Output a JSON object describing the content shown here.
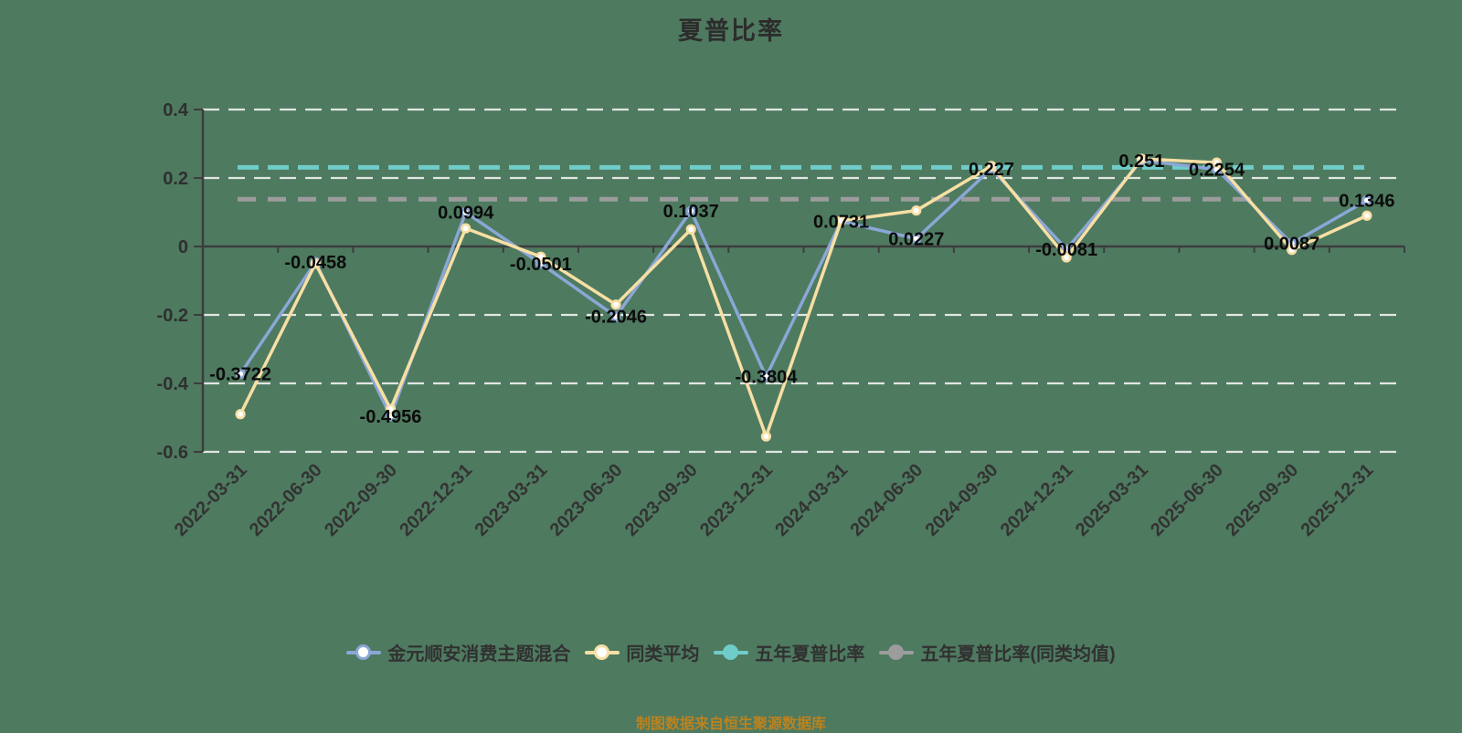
{
  "page": {
    "background": "#4e7a60"
  },
  "header": {
    "title": "夏普比率"
  },
  "chart_data": {
    "type": "line",
    "title": "夏普比率",
    "categories": [
      "2022-03-31",
      "2022-06-30",
      "2022-09-30",
      "2022-12-31",
      "2023-03-31",
      "2023-06-30",
      "2023-09-30",
      "2023-12-31",
      "2024-03-31",
      "2024-06-30",
      "2024-09-30",
      "2024-12-31",
      "2025-03-31",
      "2025-06-30",
      "2025-09-30",
      "2025-12-31"
    ],
    "series": [
      {
        "name": "金元顺安消费主题混合",
        "kind": "line",
        "color": "#8ba7d6",
        "values": [
          -0.3722,
          -0.0458,
          -0.4956,
          0.0994,
          -0.0501,
          -0.2046,
          0.1037,
          -0.3804,
          0.0731,
          0.0227,
          0.227,
          -0.0081,
          0.251,
          0.2254,
          0.0087,
          0.1346
        ],
        "point_labels": [
          "-0.3722",
          "-0.0458",
          "-0.4956",
          "0.0994",
          "-0.0501",
          "-0.2046",
          "0.1037",
          "-0.3804",
          "0.0731",
          "0.0227",
          "0.227",
          "-0.0081",
          "0.251",
          "0.2254",
          "0.0087",
          "0.1346"
        ]
      },
      {
        "name": "同类平均",
        "kind": "line",
        "color": "#f8dfa4",
        "values": [
          -0.49,
          -0.05,
          -0.475,
          0.053,
          -0.03,
          -0.17,
          0.05,
          -0.555,
          0.075,
          0.105,
          0.235,
          -0.032,
          0.256,
          0.245,
          -0.01,
          0.09
        ]
      },
      {
        "name": "五年夏普比率",
        "kind": "hline",
        "color": "#6fccc8",
        "value": 0.231
      },
      {
        "name": "五年夏普比率(同类均值)",
        "kind": "hline",
        "color": "#9c9c9c",
        "value": 0.138
      }
    ],
    "ylim": [
      -0.6,
      0.4
    ],
    "yticks": [
      {
        "value": 0.4,
        "label": "0.4"
      },
      {
        "value": 0.2,
        "label": "0.2"
      },
      {
        "value": 0,
        "label": "0"
      },
      {
        "value": -0.2,
        "label": "-0.2"
      },
      {
        "value": -0.4,
        "label": "-0.4"
      },
      {
        "value": -0.6,
        "label": "-0.6"
      }
    ],
    "grid": "horizontal-dashed-white",
    "legend_position": "bottom",
    "colors": {
      "axis": "#3d3d3d",
      "gridline": "#f2f2f2",
      "value_label": "#0b0b0b",
      "marker_fill": "#ffffff"
    }
  },
  "legend": {
    "items": [
      {
        "label": "金元顺安消费主题混合",
        "color": "#8ba7d6",
        "marker": "ring"
      },
      {
        "label": "同类平均",
        "color": "#f8dfa4",
        "marker": "ring"
      },
      {
        "label": "五年夏普比率",
        "color": "#6fccc8",
        "marker": "dot"
      },
      {
        "label": "五年夏普比率(同类均值)",
        "color": "#9c9c9c",
        "marker": "dot"
      }
    ]
  },
  "footer": {
    "text": "制图数据来自恒生聚源数据库",
    "color": "#bc821e"
  }
}
